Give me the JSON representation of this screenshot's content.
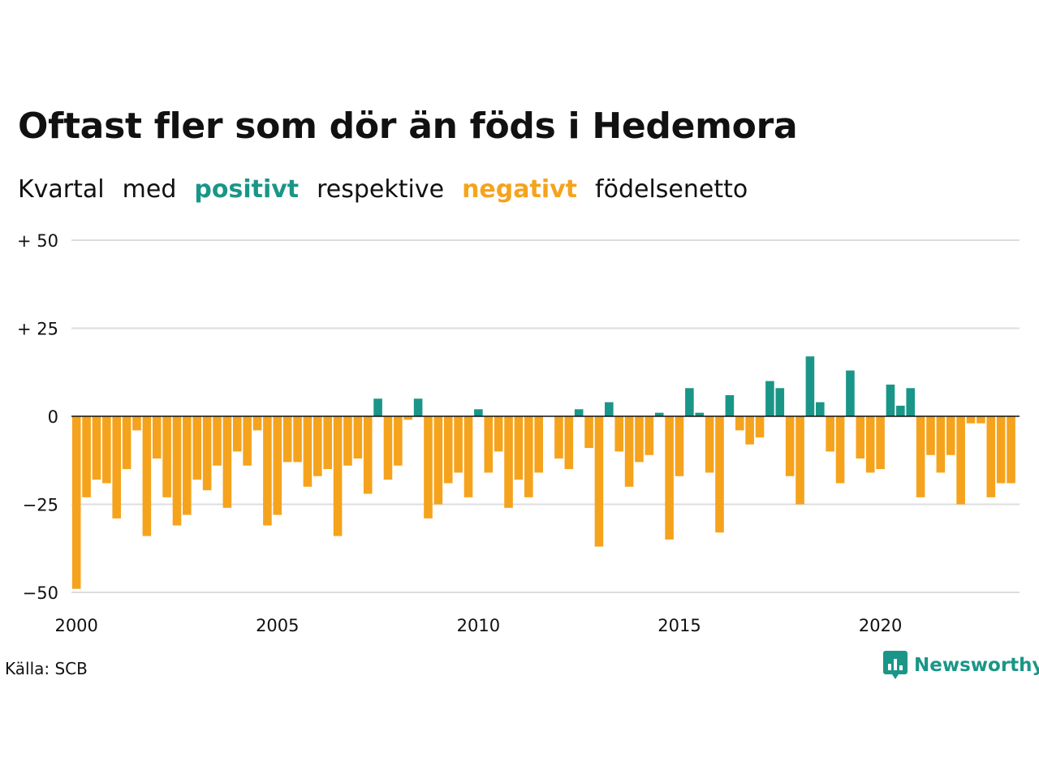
{
  "title": "Oftast fler som dör än föds i Hedemora",
  "subtitle": {
    "part1": "Kvartal",
    "part2": "med",
    "positive": "positivt",
    "part3": "respektive",
    "negative": "negativt",
    "part4": "födelsenetto"
  },
  "source": "Källa: SCB",
  "brand": {
    "name": "Newsworthy",
    "icon": "newsworthy-logo-icon"
  },
  "colors": {
    "positive": "#1a9688",
    "negative": "#f5a31d",
    "grid": "#dddddd",
    "zero_line": "#111111"
  },
  "chart_data": {
    "type": "bar",
    "x_start_year": 2000,
    "x_step": "quarter",
    "x_tick_labels": [
      "2000",
      "2005",
      "2010",
      "2015",
      "2020"
    ],
    "y_ticks": [
      50,
      25,
      0,
      -25,
      -50
    ],
    "y_tick_labels": [
      "+ 50",
      "+ 25",
      "0",
      "−25",
      "−50"
    ],
    "ylim": [
      -50,
      50
    ],
    "grid": true,
    "values": [
      -49,
      -23,
      -18,
      -19,
      -29,
      -15,
      -4,
      -34,
      -12,
      -23,
      -31,
      -28,
      -18,
      -21,
      -14,
      -26,
      -10,
      -14,
      -4,
      -31,
      -28,
      -13,
      -13,
      -20,
      -17,
      -15,
      -34,
      -14,
      -12,
      -22,
      5,
      -18,
      -14,
      -1,
      5,
      -29,
      -25,
      -19,
      -16,
      -23,
      2,
      -16,
      -10,
      -26,
      -18,
      -23,
      -16,
      0,
      -12,
      -15,
      2,
      -9,
      -37,
      4,
      -10,
      -20,
      -13,
      -11,
      1,
      -35,
      -17,
      8,
      1,
      -16,
      -33,
      6,
      -4,
      -8,
      -6,
      10,
      8,
      -17,
      -25,
      17,
      4,
      -10,
      -19,
      13,
      -12,
      -16,
      -15,
      9,
      3,
      8,
      -23,
      -11,
      -16,
      -11,
      -25,
      -2,
      -2,
      -23,
      -19,
      -19
    ]
  }
}
